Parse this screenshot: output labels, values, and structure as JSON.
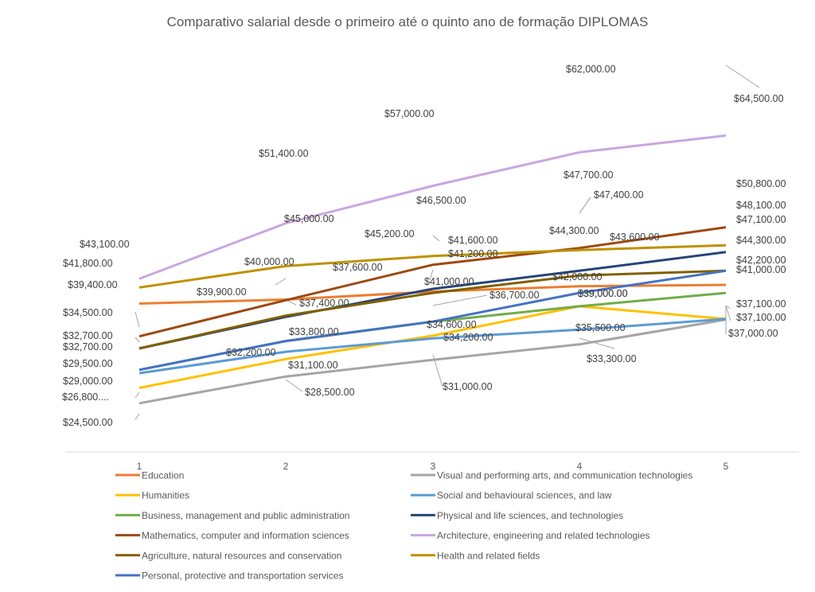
{
  "chart_data": {
    "type": "line",
    "title": "Comparativo salarial desde o primeiro até o quinto ano de formação DIPLOMAS",
    "x": [
      "1",
      "2",
      "3",
      "4",
      "5"
    ],
    "ylim": [
      17000,
      71000
    ],
    "grid": false,
    "legend_position": "bottom",
    "series": [
      {
        "name": "Education",
        "color": "#ED7D31",
        "values": [
          39400,
          40000,
          41200,
          42000,
          42200
        ],
        "labels": [
          "$39,400.00",
          "$40,000.00",
          "$41,200.00",
          "$42,000.00",
          "$42,200.00"
        ]
      },
      {
        "name": "Visual and performing arts, and communication technologies",
        "color": "#A5A5A5",
        "values": [
          24500,
          28500,
          31000,
          33300,
          37000
        ],
        "labels": [
          "$24,500.00",
          "$28,500.00",
          "$31,000.00",
          "$33,300.00",
          "$37,000.00"
        ]
      },
      {
        "name": "Humanities",
        "color": "#FFC000",
        "values": [
          26800,
          31100,
          34600,
          39000,
          37100
        ],
        "labels": [
          "$26,800....",
          "$31,100.00",
          "$34,600.00",
          "$39,000.00",
          "$37,100.00"
        ]
      },
      {
        "name": "Social and behavioural sciences, and law",
        "color": "#5B9BD5",
        "values": [
          29000,
          32200,
          34200,
          35500,
          37100
        ],
        "labels": [
          "$29,000.00",
          "$32,200.00",
          "$34,200.00",
          "$35,500.00",
          "$37,100.00"
        ]
      },
      {
        "name": "Business, management and public administration",
        "color": "#70AD47",
        "values": [
          29500,
          33800,
          36700,
          39000,
          41000
        ],
        "labels": [
          "$29,500.00",
          "$33,800.00",
          "$36,700.00",
          "$39,000.00",
          "$41,000.00"
        ]
      },
      {
        "name": "Physical and life sciences, and technologies",
        "color": "#264478",
        "values": [
          32700,
          37400,
          41600,
          44300,
          47100
        ],
        "labels": [
          "$32,700.00",
          "$37,400.00",
          "$41,600.00",
          "$44,300.00",
          "$47,100.00"
        ]
      },
      {
        "name": "Mathematics, computer and information sciences",
        "color": "#9E480E",
        "values": [
          34500,
          39900,
          45200,
          47700,
          50800
        ],
        "labels": [
          "$34,500.00",
          "$39,900.00",
          "$45,200.00",
          "$47,700.00",
          "$50,800.00"
        ]
      },
      {
        "name": "Architecture, engineering and related technologies",
        "color": "#C9A6E0",
        "values": [
          43100,
          51400,
          57000,
          62000,
          64500
        ],
        "labels": [
          "$43,100.00",
          "$51,400.00",
          "$57,000.00",
          "$62,000.00",
          "$64,500.00"
        ]
      },
      {
        "name": "Agriculture, natural resources and conservation",
        "color": "#806000",
        "values": [
          32700,
          37600,
          41000,
          43600,
          44300
        ],
        "labels": [
          "$32,700.00",
          "$37,600.00",
          "$41,000.00",
          "$43,600.00",
          "$44,300.00"
        ]
      },
      {
        "name": "Health and related fields",
        "color": "#BF9000",
        "values": [
          41800,
          45000,
          46500,
          47400,
          48100
        ],
        "labels": [
          "$41,800.00",
          "$45,000.00",
          "$46,500.00",
          "$47,400.00",
          "$48,100.00"
        ]
      },
      {
        "name": "Personal, protective and transportation services",
        "color": "#4472C4",
        "values": [
          29500,
          33800,
          36700,
          41000,
          44300
        ],
        "labels": null
      }
    ]
  }
}
